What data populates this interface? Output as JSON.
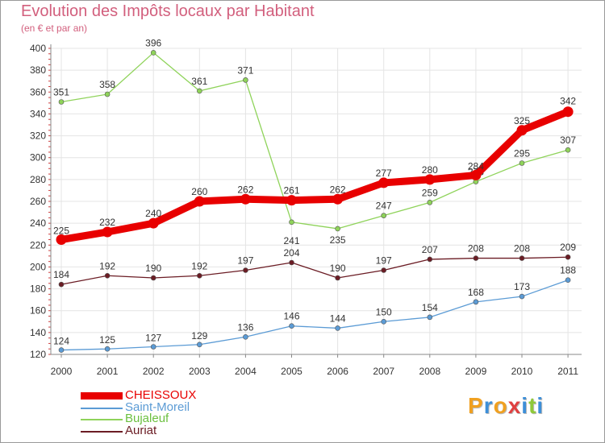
{
  "chart_data": {
    "type": "line",
    "title": "Evolution des Impôts locaux par Habitant",
    "subtitle": "(en € et par an)",
    "x": [
      "2000",
      "2001",
      "2002",
      "2003",
      "2004",
      "2005",
      "2006",
      "2007",
      "2008",
      "2009",
      "2010",
      "2011"
    ],
    "ylim": [
      120,
      400
    ],
    "yticks": [
      120,
      140,
      160,
      180,
      200,
      220,
      240,
      260,
      280,
      300,
      320,
      340,
      360,
      380,
      400
    ],
    "grid": true,
    "legend_position": "bottom-left",
    "series": [
      {
        "name": "CHEISSOUX",
        "color": "#e80000",
        "values": [
          225,
          232,
          240,
          260,
          262,
          261,
          262,
          277,
          280,
          284,
          325,
          342
        ]
      },
      {
        "name": "Saint-Moreil",
        "color": "#5b9bd5",
        "values": [
          124,
          125,
          127,
          129,
          136,
          146,
          144,
          150,
          154,
          168,
          173,
          188
        ]
      },
      {
        "name": "Bujaleuf",
        "color": "#8fd35a",
        "values": [
          351,
          358,
          396,
          361,
          371,
          241,
          235,
          247,
          259,
          278,
          295,
          307
        ]
      },
      {
        "name": "Auriat",
        "color": "#6b1c24",
        "values": [
          184,
          192,
          190,
          192,
          197,
          204,
          190,
          197,
          207,
          208,
          208,
          209
        ]
      }
    ]
  },
  "logo": {
    "text": "Proxiti",
    "colors": [
      "#f0a020",
      "#3d8fd8",
      "#f0a020",
      "#e04040",
      "#3d8fd8",
      "#8fc93a",
      "#3d8fd8"
    ]
  }
}
